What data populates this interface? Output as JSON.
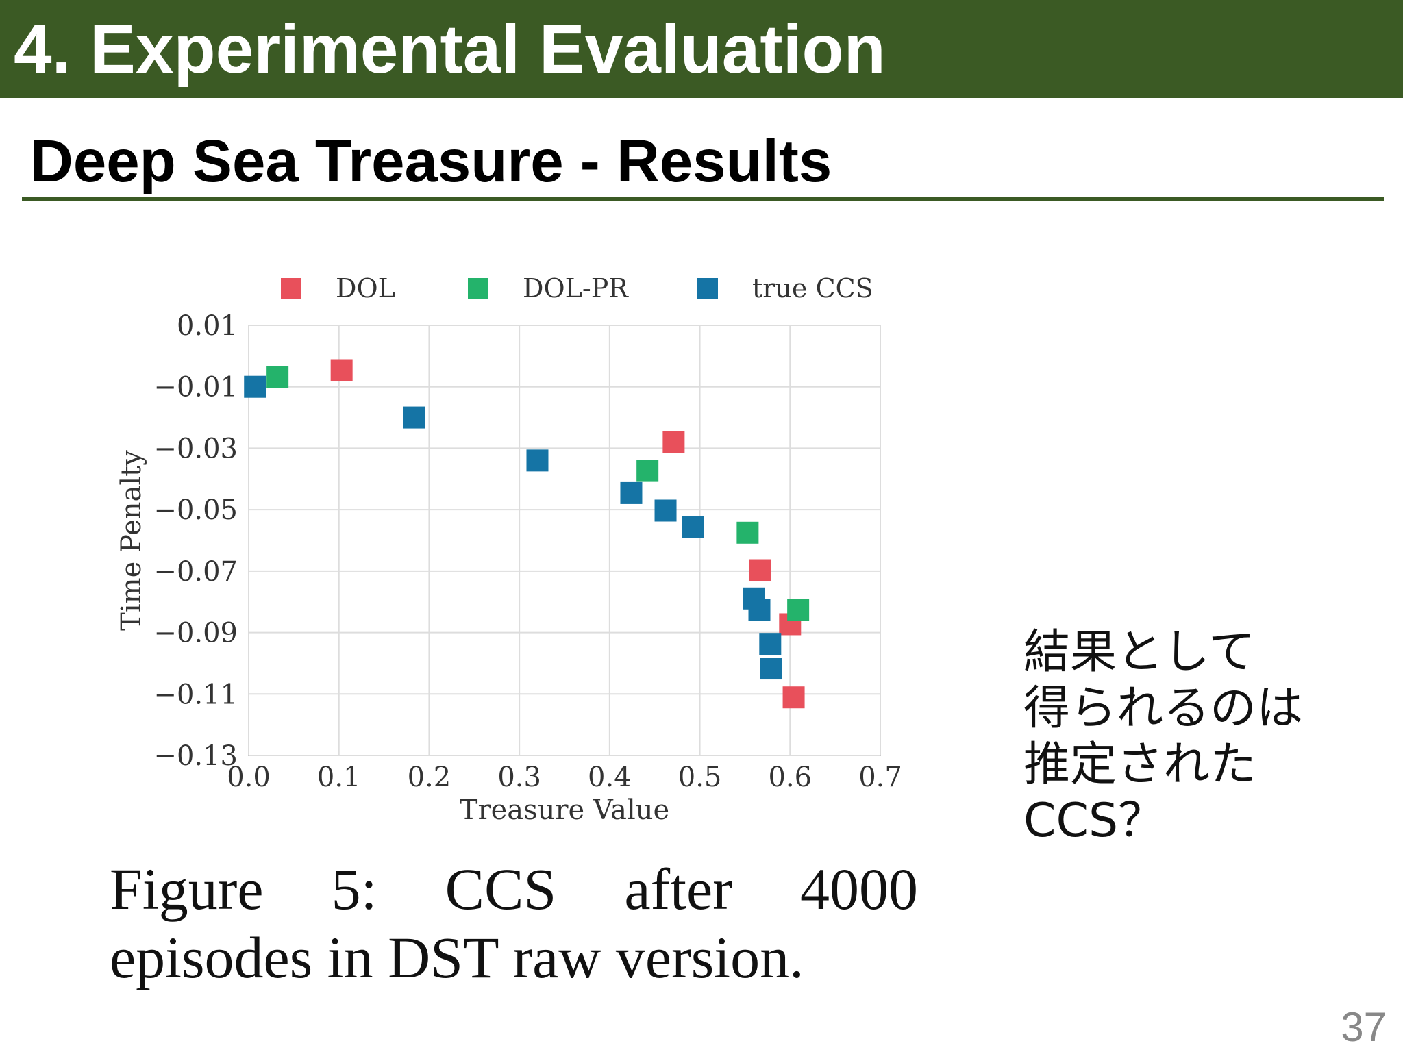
{
  "slide": {
    "title": "4. Experimental Evaluation",
    "subtitle": "Deep Sea Treasure - Results",
    "page_number": "37"
  },
  "caption": {
    "line1": [
      "Figure",
      "5:",
      "CCS",
      "after",
      "4000"
    ],
    "line2": "episodes in DST raw version."
  },
  "side_note": {
    "lines": [
      "結果として",
      "得られるのは",
      "推定された",
      "CCS？"
    ]
  },
  "colors": {
    "header_green": "#3b5a24",
    "dol": "#e8505b",
    "dol_pr": "#24b36b",
    "true_ccs": "#1574a5"
  },
  "chart_data": {
    "type": "scatter",
    "xlabel": "Treasure Value",
    "ylabel": "Time Penalty",
    "xlim": [
      0.0,
      0.7
    ],
    "ylim": [
      -0.13,
      0.01
    ],
    "x_ticks": [
      0.0,
      0.1,
      0.2,
      0.3,
      0.4,
      0.5,
      0.6,
      0.7
    ],
    "x_tick_labels": [
      "0.0",
      "0.1",
      "0.2",
      "0.3",
      "0.4",
      "0.5",
      "0.6",
      "0.7"
    ],
    "y_ticks": [
      0.01,
      -0.01,
      -0.03,
      -0.05,
      -0.07,
      -0.09,
      -0.11,
      -0.13
    ],
    "y_tick_labels": [
      "0.01",
      "−0.01",
      "−0.03",
      "−0.05",
      "−0.07",
      "−0.09",
      "−0.11",
      "−0.13"
    ],
    "grid": true,
    "legend_placement": "top",
    "series": [
      {
        "name": "DOL",
        "color": "#e8505b",
        "points": [
          [
            0.103,
            -0.0046
          ],
          [
            0.471,
            -0.0281
          ],
          [
            0.567,
            -0.0697
          ],
          [
            0.6,
            -0.0873
          ],
          [
            0.604,
            -0.1111
          ]
        ]
      },
      {
        "name": "DOL-PR",
        "color": "#24b36b",
        "points": [
          [
            0.032,
            -0.0068
          ],
          [
            0.442,
            -0.0374
          ],
          [
            0.553,
            -0.0575
          ],
          [
            0.609,
            -0.0826
          ]
        ]
      },
      {
        "name": "true CCS",
        "color": "#1574a5",
        "points": [
          [
            0.007,
            -0.01
          ],
          [
            0.183,
            -0.02
          ],
          [
            0.32,
            -0.034
          ],
          [
            0.424,
            -0.0446
          ],
          [
            0.462,
            -0.0503
          ],
          [
            0.492,
            -0.0557
          ],
          [
            0.56,
            -0.0789
          ],
          [
            0.566,
            -0.0826
          ],
          [
            0.578,
            -0.0937
          ],
          [
            0.579,
            -0.1017
          ]
        ]
      }
    ]
  }
}
